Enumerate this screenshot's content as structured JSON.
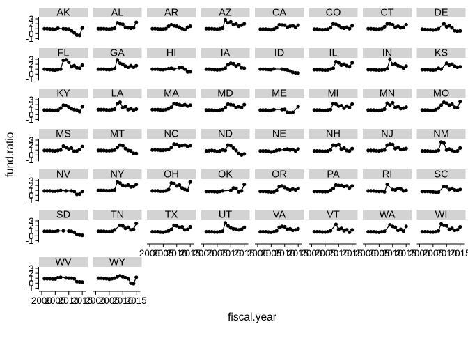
{
  "figure": {
    "ylab": "fund.ratio",
    "xlab": "fiscal.year",
    "strip_color": "#d3d3d3",
    "line_color": "#000000",
    "point_color": "#000000",
    "text_color": "#000000"
  },
  "chart_data": {
    "type": "line",
    "small_multiples": true,
    "title": "",
    "xlabel": "fiscal.year",
    "ylabel": "fund.ratio",
    "x": [
      2001,
      2002,
      2003,
      2004,
      2005,
      2006,
      2007,
      2008,
      2009,
      2010,
      2011,
      2012,
      2013,
      2014,
      2015
    ],
    "xlim": [
      1999.5,
      2016.5
    ],
    "ylim": [
      -1.5,
      3.5
    ],
    "x_ticks": [
      2000,
      2005,
      2010,
      2015
    ],
    "y_ticks": [
      -1,
      0,
      1,
      2,
      3
    ],
    "layout_columns": 8,
    "layout_rows": 7,
    "panel_order": "alphabetical by state, row-major from top-left",
    "grid": false,
    "legend": "none",
    "series": [
      {
        "name": "AK",
        "values": [
          1.0,
          1.0,
          0.95,
          0.9,
          0.85,
          1.1,
          null,
          1.0,
          0.95,
          0.9,
          0.6,
          0.2,
          -0.3,
          -0.35,
          1.15
        ]
      },
      {
        "name": "AL",
        "values": [
          1.0,
          1.0,
          1.0,
          0.95,
          0.9,
          1.0,
          1.1,
          2.2,
          2.0,
          1.9,
          1.3,
          1.2,
          1.1,
          1.2,
          2.3
        ]
      },
      {
        "name": "AR",
        "values": [
          1.0,
          1.0,
          0.95,
          0.9,
          0.9,
          1.0,
          1.5,
          1.8,
          1.6,
          1.5,
          1.3,
          1.0,
          0.8,
          1.3,
          1.5
        ]
      },
      {
        "name": "AZ",
        "values": [
          1.0,
          1.0,
          1.0,
          0.95,
          0.9,
          1.0,
          1.1,
          2.8,
          2.2,
          2.4,
          1.8,
          2.0,
          1.5,
          1.7,
          2.0
        ]
      },
      {
        "name": "CA",
        "values": [
          0.9,
          0.9,
          0.9,
          0.85,
          0.8,
          0.9,
          1.2,
          1.8,
          1.75,
          1.7,
          1.3,
          1.5,
          1.6,
          1.3,
          1.7
        ]
      },
      {
        "name": "CO",
        "values": [
          0.9,
          0.9,
          0.85,
          0.8,
          0.85,
          0.9,
          1.2,
          2.0,
          1.9,
          1.6,
          1.2,
          1.1,
          1.3,
          1.0,
          1.6
        ]
      },
      {
        "name": "CT",
        "values": [
          1.0,
          1.0,
          0.95,
          0.9,
          0.9,
          1.0,
          1.4,
          2.0,
          2.0,
          1.8,
          1.3,
          1.5,
          1.2,
          1.3,
          1.8
        ]
      },
      {
        "name": "DE",
        "values": [
          0.9,
          0.85,
          0.8,
          0.8,
          0.75,
          0.8,
          1.0,
          null,
          2.0,
          1.4,
          1.6,
          1.2,
          0.6,
          0.5,
          0.55
        ]
      },
      {
        "name": "FL",
        "values": [
          1.0,
          0.95,
          0.9,
          0.85,
          0.8,
          0.9,
          1.0,
          2.8,
          2.9,
          2.4,
          1.5,
          1.7,
          1.3,
          1.2,
          1.8
        ]
      },
      {
        "name": "GA",
        "values": [
          1.0,
          1.0,
          1.0,
          0.95,
          0.9,
          1.0,
          1.1,
          2.9,
          2.2,
          2.0,
          1.6,
          1.4,
          1.7,
          1.4,
          1.7
        ]
      },
      {
        "name": "HI",
        "values": [
          1.0,
          1.0,
          1.0,
          0.95,
          0.9,
          1.0,
          1.1,
          1.2,
          1.0,
          null,
          1.3,
          1.35,
          1.0,
          0.45,
          0.5
        ]
      },
      {
        "name": "IA",
        "values": [
          1.0,
          1.0,
          0.95,
          0.9,
          0.85,
          0.9,
          1.0,
          1.2,
          1.9,
          2.2,
          2.1,
          1.6,
          1.9,
          1.3,
          1.2
        ]
      },
      {
        "name": "ID",
        "values": [
          1.0,
          1.0,
          0.98,
          0.95,
          0.9,
          1.05,
          null,
          null,
          1.0,
          0.95,
          0.85,
          0.6,
          0.35,
          0.25,
          0.2
        ]
      },
      {
        "name": "IL",
        "values": [
          0.9,
          0.9,
          0.9,
          0.85,
          0.8,
          0.85,
          1.0,
          1.2,
          2.5,
          2.3,
          1.8,
          2.0,
          1.7,
          1.5,
          2.3
        ]
      },
      {
        "name": "IN",
        "values": [
          0.9,
          0.9,
          0.9,
          0.85,
          0.8,
          0.85,
          0.9,
          1.1,
          3.0,
          2.0,
          2.1,
          1.7,
          1.5,
          1.2,
          1.6
        ]
      },
      {
        "name": "KS",
        "values": [
          0.9,
          0.9,
          0.9,
          0.85,
          0.8,
          0.9,
          1.2,
          1.0,
          null,
          2.2,
          1.8,
          2.0,
          1.6,
          1.4,
          1.5
        ]
      },
      {
        "name": "KY",
        "values": [
          0.9,
          0.9,
          0.9,
          0.85,
          0.85,
          0.9,
          1.3,
          1.9,
          1.8,
          1.5,
          1.2,
          1.0,
          0.9,
          0.6,
          1.6
        ]
      },
      {
        "name": "LA",
        "values": [
          1.0,
          1.0,
          1.0,
          0.95,
          0.9,
          1.0,
          1.1,
          2.2,
          2.5,
          1.4,
          1.6,
          1.0,
          1.2,
          0.9,
          1.1
        ]
      },
      {
        "name": "MA",
        "values": [
          1.0,
          1.0,
          1.0,
          0.95,
          0.9,
          1.0,
          1.2,
          1.5,
          2.2,
          2.1,
          2.0,
          1.8,
          2.0,
          1.7,
          1.9
        ]
      },
      {
        "name": "MD",
        "values": [
          0.9,
          0.9,
          0.9,
          0.85,
          0.85,
          0.9,
          1.0,
          1.4,
          2.1,
          2.0,
          1.9,
          1.4,
          1.6,
          1.4,
          2.0
        ]
      },
      {
        "name": "ME",
        "values": [
          0.9,
          0.9,
          0.9,
          0.85,
          0.85,
          1.0,
          null,
          null,
          1.0,
          1.05,
          0.5,
          0.4,
          0.45,
          null,
          1.6
        ]
      },
      {
        "name": "MI",
        "values": [
          0.9,
          0.9,
          0.9,
          0.85,
          0.85,
          0.9,
          1.0,
          2.2,
          2.1,
          1.7,
          1.8,
          1.3,
          1.7,
          1.4,
          2.1
        ]
      },
      {
        "name": "MN",
        "values": [
          0.9,
          0.9,
          0.9,
          0.85,
          0.85,
          0.9,
          1.1,
          2.3,
          1.9,
          2.4,
          1.4,
          1.6,
          1.2,
          1.3,
          1.5
        ]
      },
      {
        "name": "MO",
        "values": [
          0.9,
          0.9,
          0.9,
          0.85,
          0.85,
          1.0,
          1.3,
          1.9,
          2.5,
          2.3,
          1.9,
          2.1,
          1.5,
          1.4,
          2.6
        ]
      },
      {
        "name": "MS",
        "values": [
          0.9,
          0.9,
          0.9,
          0.85,
          0.8,
          0.9,
          1.0,
          1.8,
          1.5,
          1.2,
          1.4,
          0.75,
          0.8,
          1.1,
          1.7
        ]
      },
      {
        "name": "MT",
        "values": [
          0.9,
          0.9,
          0.9,
          0.85,
          0.85,
          0.9,
          1.0,
          1.5,
          2.0,
          1.9,
          1.3,
          0.9,
          0.8,
          0.35,
          0.3
        ]
      },
      {
        "name": "NC",
        "values": [
          1.0,
          1.0,
          1.0,
          0.95,
          0.95,
          1.0,
          1.1,
          1.5,
          2.2,
          2.1,
          1.8,
          1.9,
          2.0,
          1.7,
          1.9
        ]
      },
      {
        "name": "ND",
        "values": [
          0.8,
          0.85,
          0.9,
          0.85,
          0.7,
          0.8,
          1.0,
          0.9,
          2.0,
          1.9,
          1.4,
          0.9,
          0.3,
          0.0,
          0.2
        ]
      },
      {
        "name": "NE",
        "values": [
          0.8,
          0.8,
          0.8,
          0.75,
          0.6,
          0.7,
          0.9,
          1.0,
          null,
          1.1,
          1.2,
          1.0,
          1.1,
          0.8,
          1.2
        ]
      },
      {
        "name": "NH",
        "values": [
          0.8,
          0.8,
          0.8,
          0.75,
          0.75,
          0.8,
          1.0,
          2.0,
          1.9,
          2.1,
          1.2,
          1.4,
          0.9,
          0.8,
          1.3
        ]
      },
      {
        "name": "NJ",
        "values": [
          0.9,
          0.9,
          0.9,
          0.85,
          0.8,
          0.9,
          1.0,
          2.0,
          2.2,
          2.1,
          1.3,
          1.5,
          1.1,
          1.2,
          1.3
        ]
      },
      {
        "name": "NM",
        "values": [
          0.8,
          0.8,
          0.8,
          0.75,
          0.7,
          0.75,
          0.9,
          2.6,
          2.4,
          1.0,
          1.2,
          0.9,
          0.7,
          0.8,
          1.4
        ]
      },
      {
        "name": "NV",
        "values": [
          0.9,
          0.9,
          0.9,
          0.85,
          0.85,
          0.9,
          1.0,
          null,
          0.9,
          null,
          0.9,
          0.8,
          0.2,
          0.25,
          0.8
        ]
      },
      {
        "name": "NY",
        "values": [
          1.0,
          1.0,
          1.0,
          0.95,
          0.95,
          1.0,
          1.1,
          2.7,
          2.5,
          2.0,
          1.9,
          2.1,
          1.7,
          1.8,
          2.2
        ]
      },
      {
        "name": "OH",
        "values": [
          0.9,
          0.9,
          0.9,
          0.85,
          0.85,
          0.9,
          1.2,
          2.5,
          2.4,
          1.9,
          2.1,
          1.5,
          1.2,
          1.0,
          2.7
        ]
      },
      {
        "name": "OK",
        "values": [
          0.8,
          0.8,
          0.8,
          0.75,
          0.7,
          0.8,
          0.9,
          null,
          null,
          1.0,
          1.5,
          1.4,
          0.7,
          0.9,
          2.2
        ]
      },
      {
        "name": "OR",
        "values": [
          0.8,
          0.8,
          0.8,
          0.75,
          0.65,
          0.7,
          1.0,
          1.8,
          1.9,
          1.6,
          1.3,
          1.1,
          1.3,
          1.1,
          1.4
        ]
      },
      {
        "name": "PA",
        "values": [
          0.8,
          0.8,
          0.8,
          0.75,
          0.75,
          0.8,
          1.0,
          1.4,
          2.1,
          2.0,
          2.0,
          1.8,
          1.9,
          1.5,
          1.9
        ]
      },
      {
        "name": "RI",
        "values": [
          0.9,
          0.9,
          0.9,
          0.85,
          0.8,
          0.85,
          0.7,
          2.2,
          null,
          1.2,
          1.1,
          1.4,
          1.3,
          0.9,
          1.0
        ]
      },
      {
        "name": "SC",
        "values": [
          0.8,
          0.8,
          0.8,
          0.75,
          0.7,
          0.6,
          0.65,
          null,
          1.8,
          1.7,
          1.2,
          1.4,
          1.1,
          1.0,
          1.2
        ]
      },
      {
        "name": "SD",
        "values": [
          0.9,
          0.9,
          0.9,
          0.85,
          0.85,
          1.0,
          null,
          1.0,
          null,
          0.95,
          0.9,
          0.7,
          0.3,
          0.15,
          0.1
        ]
      },
      {
        "name": "TN",
        "values": [
          0.9,
          0.9,
          0.9,
          0.85,
          0.85,
          0.9,
          1.2,
          null,
          2.1,
          2.0,
          1.5,
          1.7,
          1.2,
          1.3,
          2.5
        ]
      },
      {
        "name": "TX",
        "values": [
          0.8,
          0.8,
          0.8,
          0.75,
          0.7,
          0.8,
          1.0,
          1.3,
          2.1,
          2.0,
          1.7,
          1.8,
          1.2,
          1.3,
          1.8
        ]
      },
      {
        "name": "UT",
        "values": [
          0.8,
          0.8,
          0.8,
          0.75,
          0.75,
          0.8,
          0.9,
          2.6,
          2.0,
          1.6,
          1.4,
          1.3,
          1.2,
          1.3,
          1.7
        ]
      },
      {
        "name": "VA",
        "values": [
          0.8,
          0.8,
          0.8,
          0.75,
          0.7,
          0.8,
          1.0,
          1.7,
          1.9,
          1.8,
          1.3,
          1.4,
          1.1,
          1.2,
          1.4
        ]
      },
      {
        "name": "VT",
        "values": [
          0.8,
          0.8,
          0.8,
          0.75,
          0.75,
          0.8,
          1.0,
          null,
          2.3,
          1.3,
          1.5,
          1.0,
          1.2,
          0.7,
          1.2
        ]
      },
      {
        "name": "WA",
        "values": [
          0.8,
          0.8,
          0.8,
          0.75,
          0.7,
          0.8,
          0.9,
          null,
          2.2,
          1.9,
          1.7,
          1.1,
          1.3,
          0.9,
          1.9
        ]
      },
      {
        "name": "WI",
        "values": [
          0.8,
          0.8,
          0.8,
          0.75,
          0.75,
          0.8,
          1.0,
          2.4,
          2.1,
          2.0,
          1.3,
          1.5,
          1.1,
          1.2,
          1.8
        ]
      },
      {
        "name": "WV",
        "values": [
          0.9,
          0.9,
          0.9,
          0.85,
          0.85,
          1.1,
          1.2,
          null,
          1.05,
          1.0,
          1.0,
          0.9,
          0.3,
          0.25,
          0.2
        ]
      },
      {
        "name": "WY",
        "values": [
          1.0,
          1.0,
          0.95,
          0.9,
          0.8,
          0.9,
          1.0,
          1.3,
          1.5,
          1.3,
          1.1,
          0.9,
          0.0,
          -0.1,
          1.2
        ]
      }
    ]
  }
}
